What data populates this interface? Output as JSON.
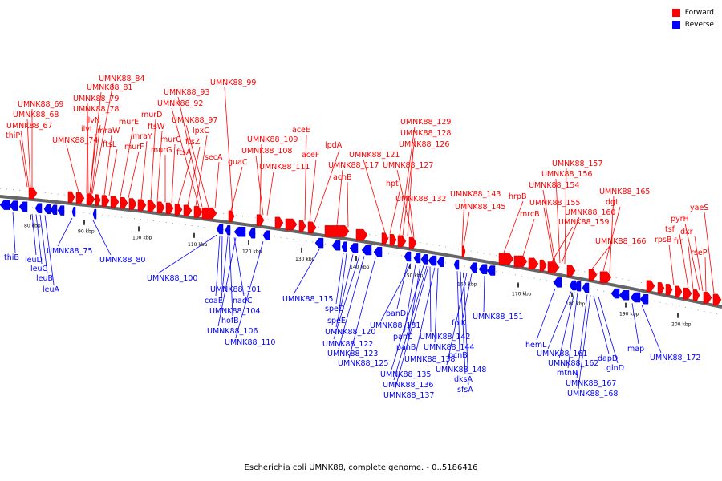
{
  "colors": {
    "forward": "#ff0000",
    "reverse": "#0000ff",
    "backbone": "#666666",
    "ticks": "#000000"
  },
  "legend": [
    {
      "label": "Forward",
      "color": "#ff0000"
    },
    {
      "label": "Reverse",
      "color": "#0000ff"
    }
  ],
  "caption": "Escherichia coli UMNK88, complete genome. - 0..5186416",
  "scale_labels": [
    "80 kbp",
    "90 kbp",
    "100 kbp",
    "110 kbp",
    "120 kbp",
    "130 kbp",
    "140 kbp",
    "150 kbp",
    "160 kbp",
    "170 kbp",
    "180 kbp",
    "190 kbp",
    "200 kbp"
  ],
  "forward_labels": [
    "UMNK88_84",
    "UMNK88_81",
    "UMNK88_79",
    "UMNK88_78",
    "UMNK88_69",
    "UMNK88_68",
    "UMNK88_67",
    "thiP",
    "ilvN",
    "ilvI",
    "UMNK88_74",
    "mraW",
    "ftsL",
    "murE",
    "murF",
    "mraY",
    "murD",
    "ftsW",
    "murG",
    "murC",
    "ftsA",
    "ftsZ",
    "lpxC",
    "UMNK88_93",
    "UMNK88_92",
    "UMNK88_97",
    "secA",
    "guaC",
    "UMNK88_99",
    "UMNK88_109",
    "UMNK88_108",
    "UMNK88_111",
    "aceE",
    "aceF",
    "lpdA",
    "UMNK88_117",
    "acnB",
    "UMNK88_121",
    "hpt",
    "UMNK88_129",
    "UMNK88_128",
    "UMNK88_126",
    "UMNK88_127",
    "UMNK88_132",
    "UMNK88_143",
    "UMNK88_145",
    "hrpB",
    "mrcB",
    "UMNK88_157",
    "UMNK88_156",
    "UMNK88_154",
    "UMNK88_155",
    "UMNK88_160",
    "UMNK88_159",
    "UMNK88_165",
    "dgt",
    "UMNK88_166",
    "yaeS",
    "pyrH",
    "tsf",
    "rpsB",
    "dxr",
    "frr",
    "rseP"
  ],
  "reverse_labels": [
    "thiB",
    "leuD",
    "leuC",
    "leuB",
    "leuA",
    "UMNK88_75",
    "UMNK88_80",
    "UMNK88_100",
    "UMNK88_101",
    "coaE",
    "nadC",
    "UMNK88_104",
    "hofB",
    "UMNK88_106",
    "UMNK88_110",
    "UMNK88_115",
    "speD",
    "speE",
    "UMNK88_120",
    "UMNK88_122",
    "UMNK88_123",
    "UMNK88_125",
    "panD",
    "UMNK88_131",
    "panC",
    "panB",
    "UMNK88_142",
    "UMNK88_138",
    "UMNK88_144",
    "UMNK88_135",
    "pcnB",
    "UMNK88_136",
    "dksA",
    "UMNK88_137",
    "sfsA",
    "UMNK88_148",
    "folK",
    "UMNK88_151",
    "hemL",
    "UMNK88_161",
    "UMNK88_162",
    "mtnN",
    "dapD",
    "glnD",
    "UMNK88_167",
    "UMNK88_168",
    "map",
    "UMNK88_172"
  ]
}
